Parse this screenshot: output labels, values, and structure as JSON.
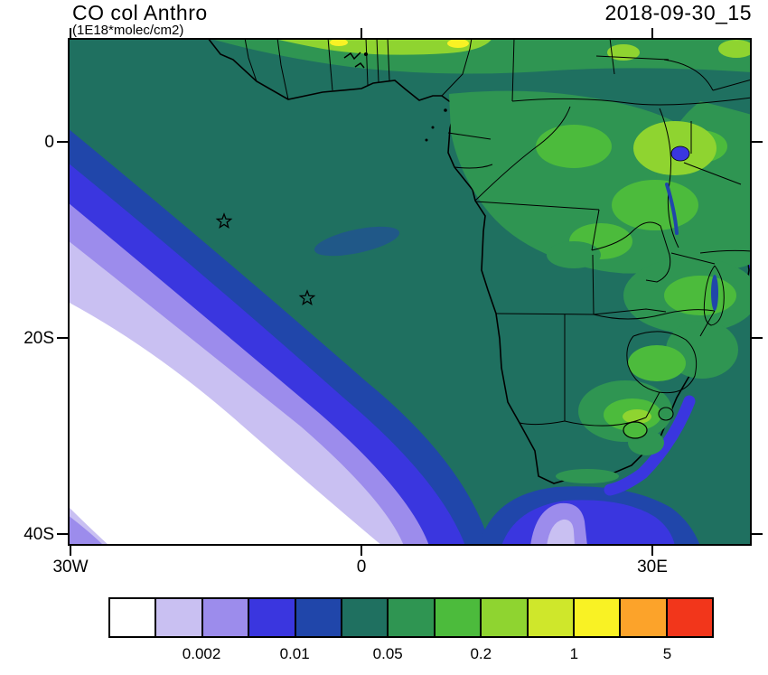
{
  "header": {
    "title": "CO col Anthro",
    "units": "(1E18*molec/cm2)",
    "date": "2018-09-30_15"
  },
  "axes": {
    "y_ticks": [
      "0",
      "20S",
      "40S"
    ],
    "x_ticks": [
      "30W",
      "0",
      "30E"
    ]
  },
  "colorbar": {
    "labels": [
      "0.002",
      "0.01",
      "0.05",
      "0.2",
      "1",
      "5"
    ],
    "label_boundaries": [
      2,
      4,
      6,
      8,
      10,
      12
    ],
    "colors": [
      "#ffffff",
      "#c9c0f2",
      "#9c8cec",
      "#3a36df",
      "#2046aa",
      "#1f7060",
      "#2f9552",
      "#4cbb3c",
      "#8fd430",
      "#cfe72b",
      "#f9f224",
      "#fca32a",
      "#f2361b"
    ]
  },
  "chart_data": {
    "type": "heatmap",
    "subtype": "filled-contour-geographic-map",
    "title": "CO col Anthro",
    "units": "1E18*molec/cm2",
    "timestamp": "2018-09-30_15",
    "x_axis": {
      "tick_labels": [
        "30W",
        "0",
        "30E"
      ],
      "approx_lon_range": [
        -30,
        40
      ]
    },
    "y_axis": {
      "tick_labels": [
        "0",
        "20S",
        "40S"
      ],
      "approx_lat_range": [
        -41,
        11
      ]
    },
    "colorbar": {
      "tick_labels": [
        "0.002",
        "0.01",
        "0.05",
        "0.2",
        "1",
        "5"
      ],
      "n_cells": 13,
      "colors": [
        "#ffffff",
        "#c9c0f2",
        "#9c8cec",
        "#3a36df",
        "#2046aa",
        "#1f7060",
        "#2f9552",
        "#4cbb3c",
        "#8fd430",
        "#cfe72b",
        "#f9f224",
        "#fca32a",
        "#f2361b"
      ],
      "legend_position": "bottom"
    },
    "markers": [
      {
        "symbol": "open-star",
        "approx_lon": -14.5,
        "approx_lat": -8
      },
      {
        "symbol": "open-star",
        "approx_lon": -5.5,
        "approx_lat": -16
      }
    ],
    "regions_approx": [
      {
        "region": "South Atlantic subtropical gyre (lower left)",
        "value": "< 0.002"
      },
      {
        "region": "Gradient rings around gyre (lavender/violet/blue)",
        "value": "0.002 - 0.02"
      },
      {
        "region": "Gulf of Guinea and tropical Atlantic plume (dark teal)",
        "value": "0.02 - 0.05"
      },
      {
        "region": "Congo basin / central and east Africa (greens)",
        "value": "0.05 - 0.2"
      },
      {
        "region": "Sahel strip and Lake Victoria area (yellow-green)",
        "value": "0.2 - 1"
      },
      {
        "region": "South African Highveld (green with yellow-green core)",
        "value": "0.2 - 1"
      },
      {
        "region": "Ocean south of the Cape (blue/violet tongue)",
        "value": "0.002 - 0.02"
      }
    ],
    "grid": false
  }
}
